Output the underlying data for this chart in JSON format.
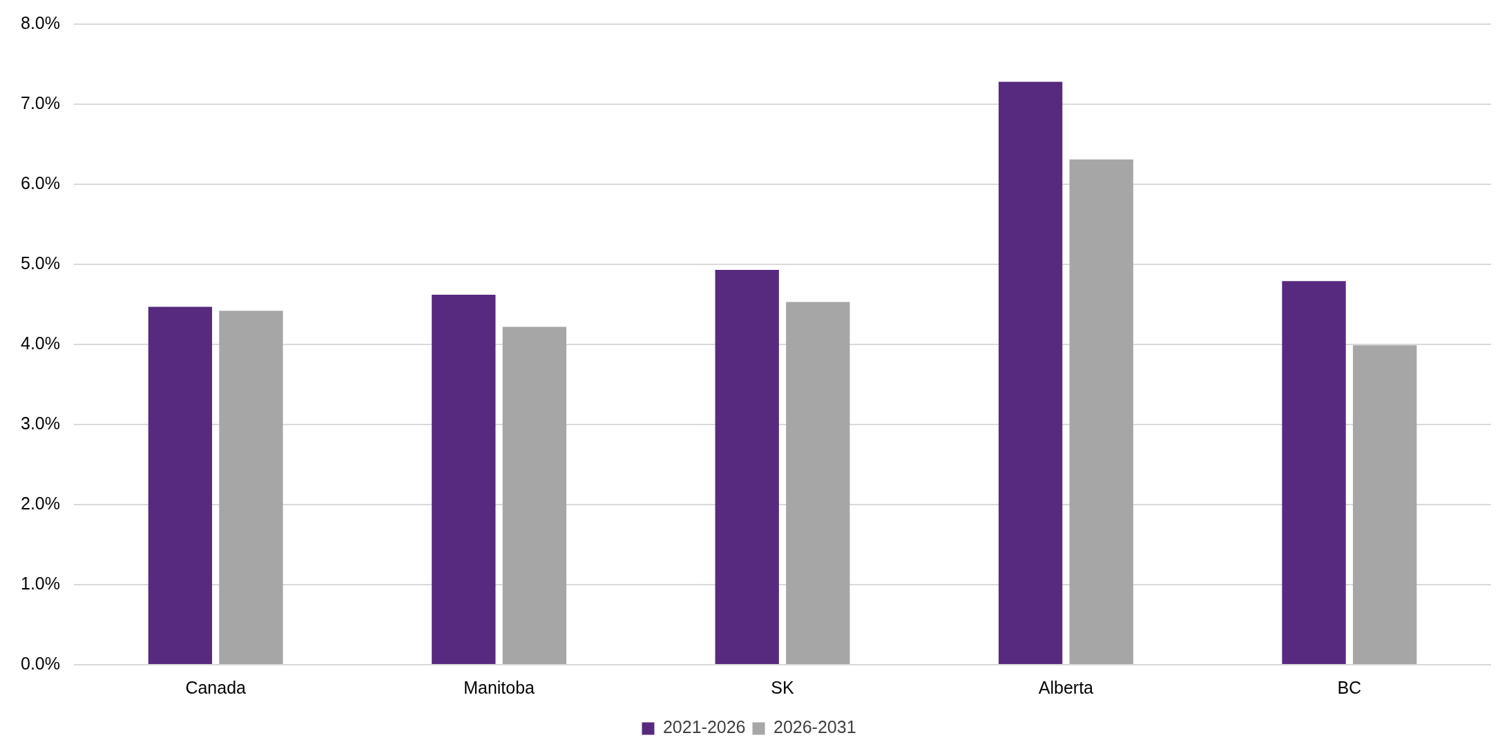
{
  "chart_data": {
    "type": "bar",
    "categories": [
      "Canada",
      "Manitoba",
      "SK",
      "Alberta",
      "BC"
    ],
    "series": [
      {
        "name": "2021-2026",
        "color": "#572a7f",
        "values": [
          4.47,
          4.62,
          4.93,
          7.28,
          4.79
        ]
      },
      {
        "name": "2026-2031",
        "color": "#a6a6a6",
        "values": [
          4.42,
          4.22,
          4.53,
          6.31,
          3.99
        ]
      }
    ],
    "ylim": [
      0,
      8
    ],
    "yticks": [
      {
        "value": 0,
        "label": "0.0%"
      },
      {
        "value": 1,
        "label": "1.0%"
      },
      {
        "value": 2,
        "label": "2.0%"
      },
      {
        "value": 3,
        "label": "3.0%"
      },
      {
        "value": 4,
        "label": "4.0%"
      },
      {
        "value": 5,
        "label": "5.0%"
      },
      {
        "value": 6,
        "label": "6.0%"
      },
      {
        "value": 7,
        "label": "7.0%"
      },
      {
        "value": 8,
        "label": "8.0%"
      }
    ],
    "grid": "y",
    "legend": "bottom"
  }
}
